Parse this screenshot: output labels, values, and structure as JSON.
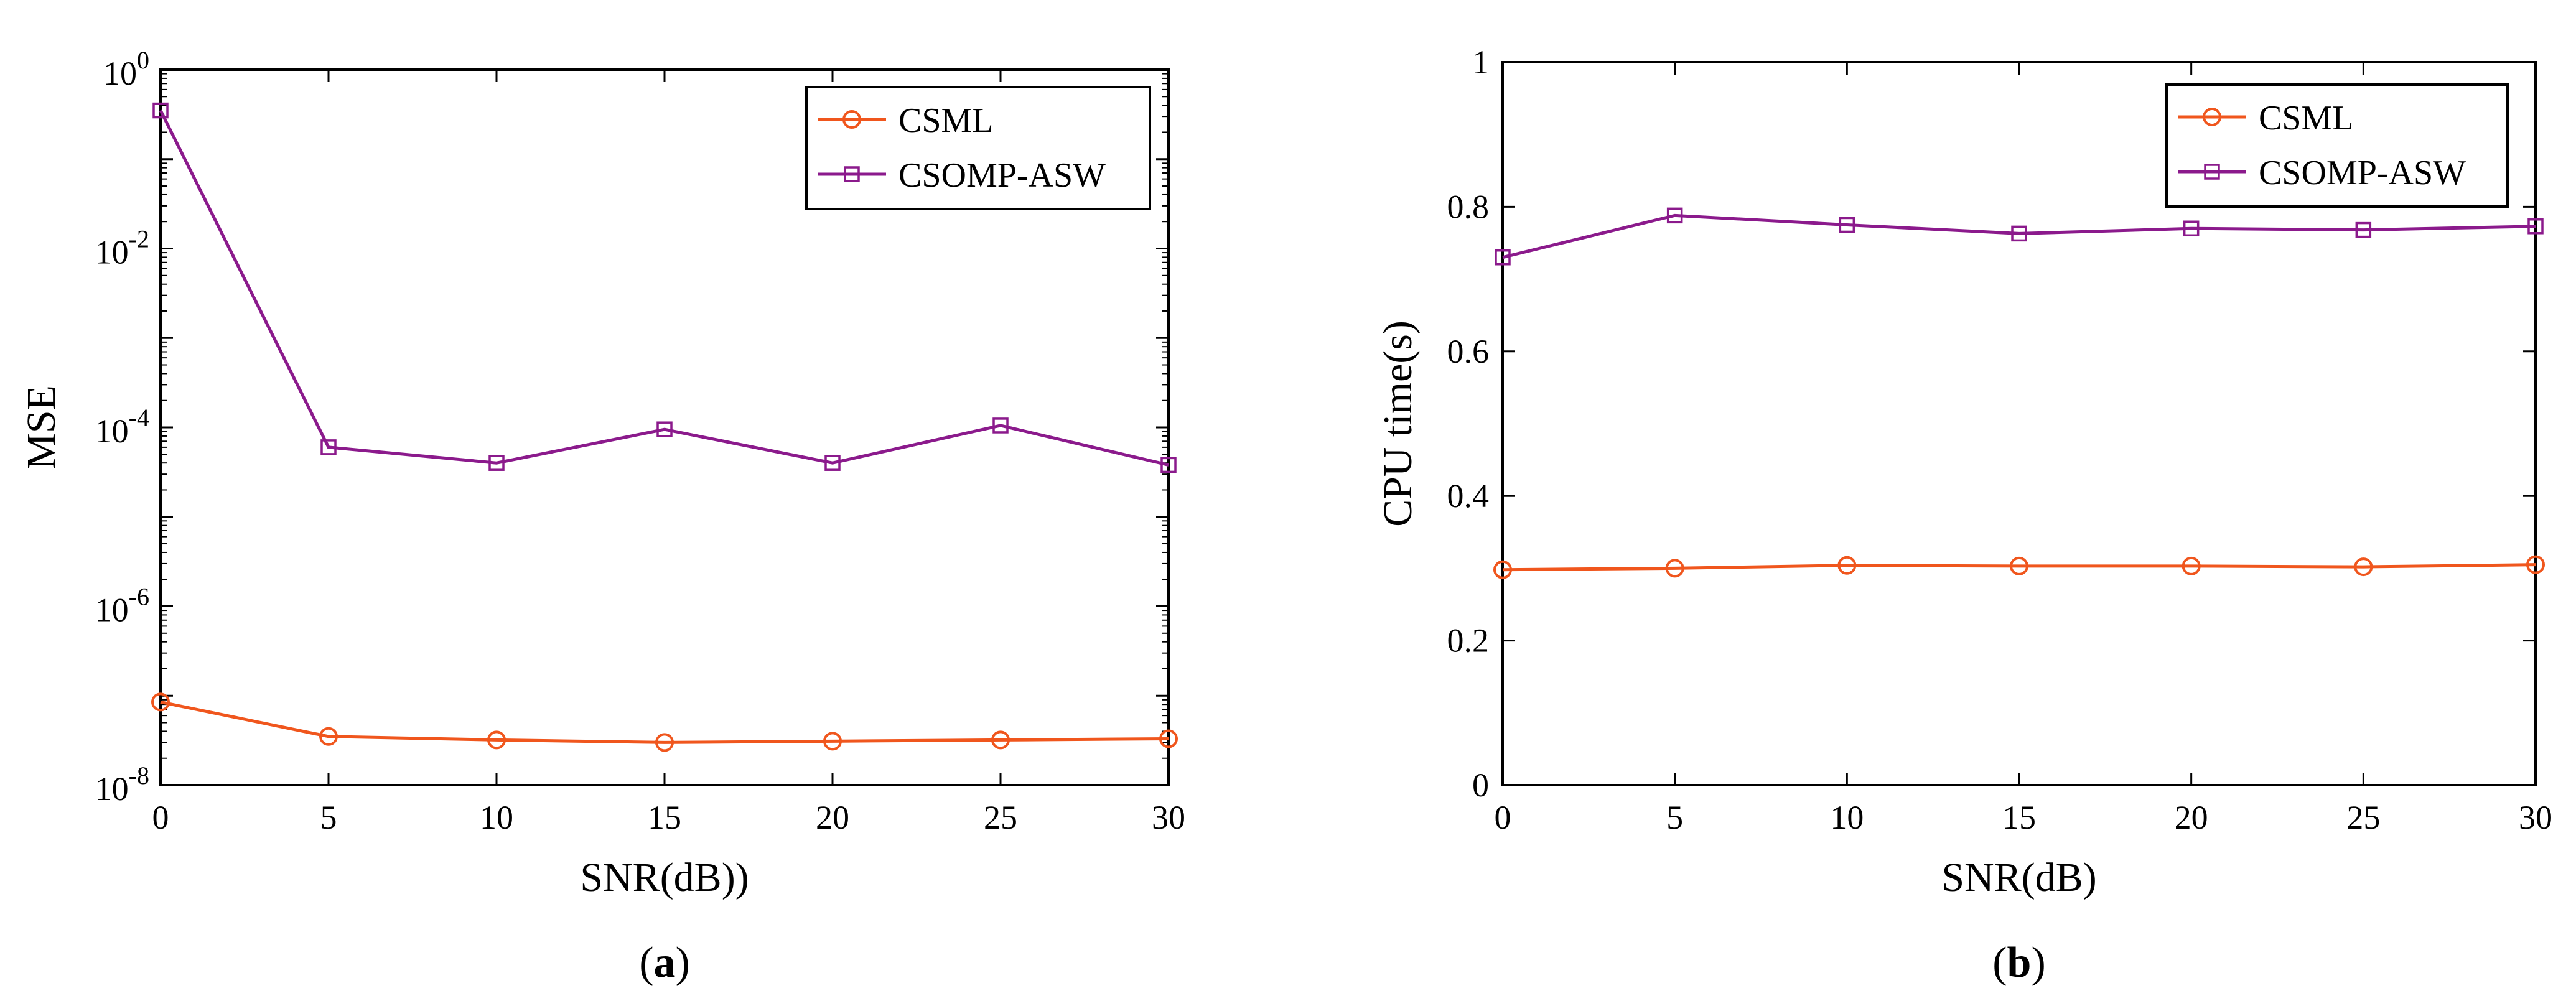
{
  "chart_data": [
    {
      "type": "line",
      "yscale": "log",
      "panel_label": {
        "open": "(",
        "letter": "a",
        "close": ")"
      },
      "xlabel": "SNR(dB))",
      "ylabel": "MSE",
      "x": [
        0,
        5,
        10,
        15,
        20,
        25,
        30
      ],
      "xlim": [
        0,
        30
      ],
      "ylim": [
        1e-08,
        1
      ],
      "xticks": [
        "0",
        "5",
        "10",
        "15",
        "20",
        "25",
        "30"
      ],
      "yticks": [
        {
          "base": "10",
          "exp": "-8"
        },
        {
          "base": "10",
          "exp": "-6"
        },
        {
          "base": "10",
          "exp": "-4"
        },
        {
          "base": "10",
          "exp": "-2"
        },
        {
          "base": "10",
          "exp": "0"
        }
      ],
      "legend_position": "top-right",
      "series": [
        {
          "name": "CSML",
          "marker": "circle",
          "color": "#f0561d",
          "values": [
            8.5e-08,
            3.5e-08,
            3.2e-08,
            3e-08,
            3.1e-08,
            3.2e-08,
            3.3e-08
          ]
        },
        {
          "name": "CSOMP-ASW",
          "marker": "square",
          "color": "#8b1a8c",
          "values": [
            0.35,
            6e-05,
            4e-05,
            9.5e-05,
            4e-05,
            0.000105,
            3.8e-05
          ]
        }
      ]
    },
    {
      "type": "line",
      "yscale": "linear",
      "panel_label": {
        "open": "(",
        "letter": "b",
        "close": ")"
      },
      "xlabel": "SNR(dB)",
      "ylabel": "CPU time(s)",
      "x": [
        0,
        5,
        10,
        15,
        20,
        25,
        30
      ],
      "xlim": [
        0,
        30
      ],
      "ylim": [
        0,
        1
      ],
      "xticks": [
        "0",
        "5",
        "10",
        "15",
        "20",
        "25",
        "30"
      ],
      "yticks": [
        "0",
        "0.2",
        "0.4",
        "0.6",
        "0.8",
        "1"
      ],
      "legend_position": "top-right",
      "series": [
        {
          "name": "CSML",
          "marker": "circle",
          "color": "#f0561d",
          "values": [
            0.298,
            0.3,
            0.304,
            0.303,
            0.303,
            0.302,
            0.305
          ]
        },
        {
          "name": "CSOMP-ASW",
          "marker": "square",
          "color": "#8b1a8c",
          "values": [
            0.73,
            0.788,
            0.775,
            0.763,
            0.77,
            0.768,
            0.773
          ]
        }
      ]
    }
  ]
}
